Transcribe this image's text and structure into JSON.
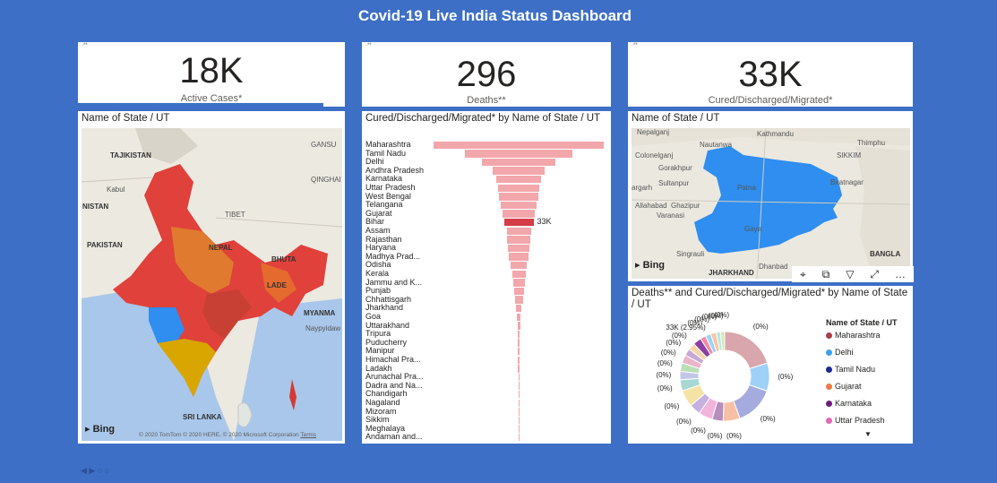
{
  "dashboard": {
    "title": "Covid-19 Live India Status Dashboard"
  },
  "kpis": [
    {
      "value": "18K",
      "label": "Active Cases*"
    },
    {
      "value": "296",
      "label": "Deaths**"
    },
    {
      "value": "33K",
      "label": "Cured/Discharged/Migrated*"
    }
  ],
  "kpi_corner": "·**",
  "india_map": {
    "title": "Name of State / UT",
    "labels": [
      "TAJIKISTAN",
      "GANSU",
      "Kabul",
      "NISTAN",
      "QINGHAI",
      "TIBET",
      "PAKISTAN",
      "NEPAL",
      "BHUTA",
      "LADE",
      "MYANMA",
      "Naypyidaw",
      "SRI LANKA"
    ],
    "bing": "Bing",
    "copyright": "© 2020 TomTom © 2020 HERE, © 2020 Microsoft Corporation",
    "terms": "Terms"
  },
  "bihar_map": {
    "title": "Name of State / UT",
    "labels": [
      "Nepalganj",
      "Nautanwa",
      "Kathmandu",
      "Thimphu",
      "Colonelganj",
      "SIKKIM",
      "Gorakhpur",
      "Sultanpur",
      "Biratnagar",
      "argarh",
      "Allahabad",
      "Ghazipur",
      "Varanasi",
      "Patna",
      "Gaya",
      "Singrauli",
      "JHARKHAND",
      "Dhanbad",
      "BANGLA"
    ],
    "bing": "Bing"
  },
  "visual_toolbar": {
    "pin": "⌖",
    "copy": "⧉",
    "filter": "▽",
    "focus": "⤢",
    "more": "…"
  },
  "chart_data": [
    {
      "type": "bar",
      "title": "Cured/Discharged/Migrated* by Name of State / UT",
      "categories": [
        "Maharashtra",
        "Tamil Nadu",
        "Delhi",
        "Andhra Pradesh",
        "Karnataka",
        "Uttar Pradesh",
        "West Bengal",
        "Telangana",
        "Gujarat",
        "Bihar",
        "Assam",
        "Rajasthan",
        "Haryana",
        "Madhya Prad...",
        "Odisha",
        "Kerala",
        "Jammu and K...",
        "Punjab",
        "Chhattisgarh",
        "Jharkhand",
        "Goa",
        "Uttarakhand",
        "Tripura",
        "Puducherry",
        "Manipur",
        "Himachal Pra...",
        "Ladakh",
        "Arunachal Pra...",
        "Dadra and Na...",
        "Chandigarh",
        "Nagaland",
        "Mizoram",
        "Sikkim",
        "Meghalaya",
        "Andaman and..."
      ],
      "values": [
        190,
        120,
        82,
        58,
        50,
        46,
        44,
        40,
        36,
        33,
        27,
        26,
        24,
        22,
        18,
        15,
        13,
        11,
        9,
        6,
        4,
        3,
        2.5,
        2,
        1.7,
        1.5,
        1.2,
        1,
        0.8,
        0.6,
        0.5,
        0.4,
        0.3,
        0.2,
        0.15
      ],
      "highlight": "Bihar",
      "data_label": {
        "category": "Bihar",
        "text": "33K"
      }
    },
    {
      "type": "pie",
      "title": "Deaths** and Cured/Discharged/Migrated* by Name of State / UT",
      "legend": {
        "title": "Name of State / UT",
        "entries": [
          {
            "name": "Maharashtra",
            "color": "#a83f4c"
          },
          {
            "name": "Delhi",
            "color": "#3f9ff1"
          },
          {
            "name": "Tamil Nadu",
            "color": "#1c2b8f"
          },
          {
            "name": "Gujarat",
            "color": "#ee7a4a"
          },
          {
            "name": "Karnataka",
            "color": "#6b1e78"
          },
          {
            "name": "Uttar Pradesh",
            "color": "#e168b4"
          }
        ]
      },
      "slices": [
        {
          "value": 20,
          "color": "#d8a6ac",
          "label": "(0%)"
        },
        {
          "value": 10,
          "color": "#9fd0f8",
          "label": "(0%)"
        },
        {
          "value": 14,
          "color": "#a6abdf",
          "label": "(0%)"
        },
        {
          "value": 6,
          "color": "#f7bfa6",
          "label": "(0%)"
        },
        {
          "value": 4,
          "color": "#b58fbd",
          "label": "(0%)"
        },
        {
          "value": 5,
          "color": "#f2b4db",
          "label": "(0%)"
        },
        {
          "value": 4,
          "color": "#c5b0e0",
          "label": "(0%)"
        },
        {
          "value": 6,
          "color": "#f4e3a4",
          "label": "(0%)"
        },
        {
          "value": 4,
          "color": "#a8d8d3",
          "label": "(0%)"
        },
        {
          "value": 3,
          "color": "#c2c7e9",
          "label": "(0%)"
        },
        {
          "value": 3,
          "color": "#b9dfb4",
          "label": "(0%)"
        },
        {
          "value": 3,
          "color": "#e9b5c9",
          "label": "(0%)"
        },
        {
          "value": 2.5,
          "color": "#c8a8d6",
          "label": "(0%)"
        },
        {
          "value": 2.5,
          "color": "#f4d6a9",
          "label": "(0%)"
        },
        {
          "value": 2.95,
          "color": "#8b3fa3",
          "label": "33K (2.95%)"
        },
        {
          "value": 2,
          "color": "#f18aa6",
          "label": "(0%)"
        },
        {
          "value": 2,
          "color": "#9bd3f4",
          "label": "(0%)"
        },
        {
          "value": 2,
          "color": "#f5c6a5",
          "label": "(0%)"
        },
        {
          "value": 1.5,
          "color": "#b8e6df",
          "label": "(0%)"
        },
        {
          "value": 1.5,
          "color": "#d5e9b4",
          "label": "(0%)"
        }
      ],
      "more_indicator": "▼"
    }
  ],
  "pager": "◀ ▶ ○ ○"
}
